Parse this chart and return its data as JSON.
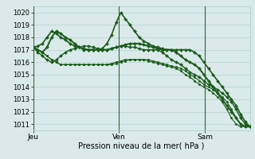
{
  "title": "Pression niveau de la mer( hPa )",
  "bg_color": "#daeaea",
  "grid_color": "#aacaca",
  "line_color": "#1a5c1a",
  "vline_color": "#336633",
  "ylim": [
    1010.5,
    1020.5
  ],
  "yticks": [
    1011,
    1012,
    1013,
    1014,
    1015,
    1016,
    1017,
    1018,
    1019,
    1020
  ],
  "xlim": [
    0,
    48
  ],
  "day_positions": [
    0,
    19,
    38
  ],
  "day_labels": [
    "Jeu",
    "Ven",
    "Sam"
  ],
  "series": [
    {
      "y": [
        1017.2,
        1017.3,
        1017.5,
        1018.0,
        1018.5,
        1018.3,
        1018.0,
        1017.8,
        1017.5,
        1017.3,
        1017.2,
        1017.1,
        1017.0,
        1017.0,
        1017.0,
        1017.1,
        1017.5,
        1018.2,
        1019.2,
        1020.0,
        1019.5,
        1019.0,
        1018.5,
        1018.0,
        1017.7,
        1017.5,
        1017.3,
        1017.2,
        1017.1,
        1017.0,
        1017.0,
        1017.0,
        1017.0,
        1017.0,
        1017.0,
        1016.8,
        1016.5,
        1016.0,
        1015.5,
        1015.0,
        1014.5,
        1014.0,
        1013.5,
        1013.0,
        1012.5,
        1011.8,
        1011.2,
        1010.8
      ],
      "lw": 1.2,
      "marker": "D",
      "ms": 2.0
    },
    {
      "y": [
        1017.2,
        1016.8,
        1016.5,
        1016.2,
        1016.0,
        1016.2,
        1016.5,
        1016.8,
        1017.0,
        1017.1,
        1017.2,
        1017.3,
        1017.3,
        1017.2,
        1017.1,
        1017.0,
        1017.0,
        1017.1,
        1017.2,
        1017.3,
        1017.3,
        1017.2,
        1017.2,
        1017.1,
        1017.0,
        1017.0,
        1017.0,
        1017.0,
        1016.8,
        1016.5,
        1016.2,
        1016.0,
        1015.8,
        1015.5,
        1015.2,
        1015.0,
        1014.8,
        1014.5,
        1014.2,
        1014.0,
        1013.8,
        1013.5,
        1013.2,
        1012.8,
        1012.2,
        1011.5,
        1011.0,
        1010.8
      ],
      "lw": 1.0,
      "marker": "D",
      "ms": 2.0
    },
    {
      "y": [
        1017.2,
        1017.0,
        1016.8,
        1016.5,
        1016.2,
        1016.0,
        1015.8,
        1015.8,
        1015.8,
        1015.8,
        1015.8,
        1015.8,
        1015.8,
        1015.8,
        1015.8,
        1015.8,
        1015.8,
        1015.8,
        1015.9,
        1016.0,
        1016.1,
        1016.2,
        1016.2,
        1016.2,
        1016.2,
        1016.2,
        1016.1,
        1016.0,
        1015.9,
        1015.8,
        1015.7,
        1015.6,
        1015.5,
        1015.3,
        1015.0,
        1014.8,
        1014.5,
        1014.2,
        1014.0,
        1013.8,
        1013.5,
        1013.2,
        1012.8,
        1012.2,
        1011.5,
        1011.0,
        1010.8,
        1010.8
      ],
      "lw": 0.8,
      "marker": "o",
      "ms": 1.8
    },
    {
      "y": [
        1017.2,
        1017.0,
        1016.8,
        1016.5,
        1016.2,
        1016.0,
        1015.8,
        1015.8,
        1015.8,
        1015.8,
        1015.8,
        1015.8,
        1015.8,
        1015.8,
        1015.8,
        1015.8,
        1015.8,
        1015.9,
        1016.0,
        1016.1,
        1016.2,
        1016.2,
        1016.2,
        1016.2,
        1016.2,
        1016.1,
        1016.0,
        1015.9,
        1015.8,
        1015.7,
        1015.6,
        1015.5,
        1015.3,
        1015.0,
        1014.8,
        1014.5,
        1014.2,
        1014.0,
        1013.8,
        1013.5,
        1013.2,
        1012.8,
        1012.2,
        1011.5,
        1011.0,
        1010.8,
        1010.8,
        1010.8
      ],
      "lw": 0.8,
      "marker": "o",
      "ms": 1.8
    },
    {
      "y": [
        1017.2,
        1017.0,
        1016.8,
        1017.2,
        1018.0,
        1018.5,
        1018.3,
        1018.0,
        1017.8,
        1017.5,
        1017.2,
        1017.0,
        1017.0,
        1017.0,
        1017.0,
        1017.0,
        1017.0,
        1017.1,
        1017.2,
        1017.3,
        1017.4,
        1017.5,
        1017.5,
        1017.5,
        1017.4,
        1017.3,
        1017.2,
        1017.1,
        1017.0,
        1017.0,
        1017.0,
        1016.8,
        1016.5,
        1016.2,
        1016.0,
        1015.8,
        1015.5,
        1015.0,
        1014.5,
        1014.0,
        1013.5,
        1013.0,
        1012.5,
        1012.0,
        1011.5,
        1011.0,
        1010.8,
        1010.8
      ],
      "lw": 1.4,
      "marker": "D",
      "ms": 2.0
    }
  ],
  "xlabel_fontsize": 7.0,
  "ytick_fontsize": 6.0,
  "xtick_fontsize": 6.5
}
